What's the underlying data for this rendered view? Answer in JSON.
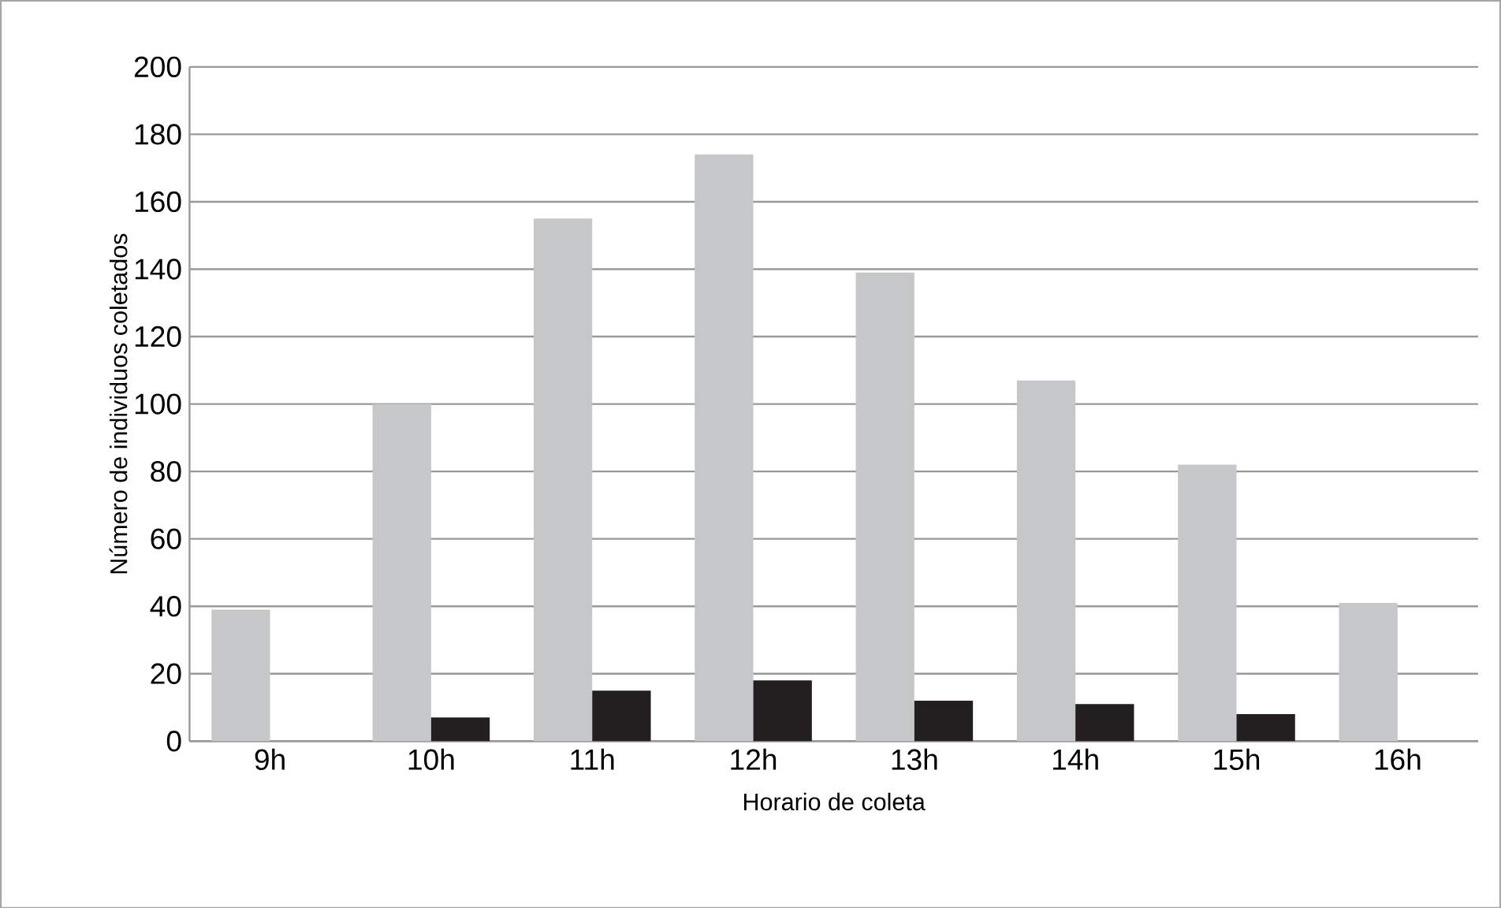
{
  "chart_data": {
    "type": "bar",
    "xlabel": "Horario de coleta",
    "ylabel": "Número de individuos coletados",
    "categories": [
      "9h",
      "10h",
      "11h",
      "12h",
      "13h",
      "14h",
      "15h",
      "16h"
    ],
    "series": [
      {
        "color": "#c6c7c9",
        "values": [
          39,
          100,
          155,
          174,
          139,
          107,
          82,
          41
        ]
      },
      {
        "color": "#231f20",
        "values": [
          null,
          7,
          15,
          18,
          12,
          11,
          8,
          null
        ]
      }
    ],
    "ylim": [
      0,
      200
    ],
    "yticks": [
      0,
      20,
      40,
      60,
      80,
      100,
      120,
      140,
      160,
      180,
      200
    ],
    "grid": "y"
  }
}
